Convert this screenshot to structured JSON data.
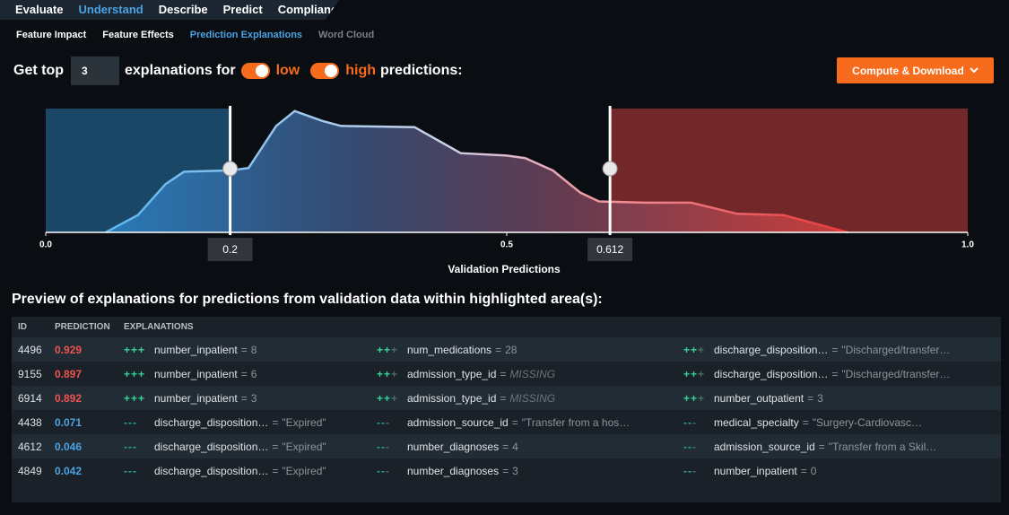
{
  "nav": {
    "tabs": [
      "Evaluate",
      "Understand",
      "Describe",
      "Predict",
      "Compliance"
    ],
    "active": 1
  },
  "subnav": {
    "tabs": [
      "Feature Impact",
      "Feature Effects",
      "Prediction Explanations",
      "Word Cloud"
    ],
    "active": 2,
    "disabled": 3
  },
  "controls": {
    "prefix": "Get top",
    "count": 3,
    "middle": "explanations for",
    "low": "low",
    "high": "high",
    "suffix": "predictions:",
    "button": "Compute & Download"
  },
  "chart_data": {
    "type": "area",
    "xlabel": "Validation Predictions",
    "xlim": [
      0,
      1
    ],
    "ylim": [
      0,
      1
    ],
    "xticks": [
      {
        "value": 0,
        "label": "0.0"
      },
      {
        "value": 0.5,
        "label": "0.5"
      },
      {
        "value": 1,
        "label": "1.0"
      }
    ],
    "x": [
      0.065,
      0.1,
      0.13,
      0.15,
      0.2,
      0.22,
      0.25,
      0.27,
      0.3,
      0.32,
      0.4,
      0.45,
      0.5,
      0.52,
      0.55,
      0.58,
      0.6,
      0.65,
      0.7,
      0.75,
      0.8,
      0.82,
      0.85,
      0.87
    ],
    "values": [
      0,
      0.14,
      0.39,
      0.49,
      0.5,
      0.52,
      0.86,
      0.98,
      0.9,
      0.86,
      0.85,
      0.64,
      0.62,
      0.6,
      0.5,
      0.32,
      0.25,
      0.24,
      0.24,
      0.15,
      0.14,
      0.1,
      0.04,
      0
    ],
    "thresholds": [
      0.2,
      0.612
    ],
    "low_color": "#2f8fcf",
    "high_color": "#c9403b"
  },
  "preview": {
    "title": "Preview of explanations for predictions from validation data within highlighted area(s):"
  },
  "table": {
    "columns": [
      "ID",
      "PREDICTION",
      "EXPLANATIONS"
    ],
    "separator": "=",
    "rows": [
      {
        "id": 4496,
        "prediction": 0.929,
        "explanations": [
          {
            "sign": "+++",
            "strength": 3,
            "feature": "number_inpatient",
            "value": 8
          },
          {
            "sign": "+++",
            "strength": 2,
            "feature": "num_medications",
            "value": 28
          },
          {
            "sign": "+++",
            "strength": 2,
            "feature": "discharge_disposition…",
            "value": "\"Discharged/transfer…"
          }
        ]
      },
      {
        "id": 9155,
        "prediction": 0.897,
        "explanations": [
          {
            "sign": "+++",
            "strength": 3,
            "feature": "number_inpatient",
            "value": 6
          },
          {
            "sign": "+++",
            "strength": 2,
            "feature": "admission_type_id",
            "value": "MISSING",
            "missing": true
          },
          {
            "sign": "+++",
            "strength": 2,
            "feature": "discharge_disposition…",
            "value": "\"Discharged/transfer…"
          }
        ]
      },
      {
        "id": 6914,
        "prediction": 0.892,
        "explanations": [
          {
            "sign": "+++",
            "strength": 3,
            "feature": "number_inpatient",
            "value": 3
          },
          {
            "sign": "+++",
            "strength": 2,
            "feature": "admission_type_id",
            "value": "MISSING",
            "missing": true
          },
          {
            "sign": "+++",
            "strength": 2,
            "feature": "number_outpatient",
            "value": 3
          }
        ]
      },
      {
        "id": 4438,
        "prediction": 0.071,
        "explanations": [
          {
            "sign": "---",
            "strength": 3,
            "feature": "discharge_disposition…",
            "value": "\"Expired\""
          },
          {
            "sign": "---",
            "strength": 2,
            "feature": "admission_source_id",
            "value": "\"Transfer from a hos…"
          },
          {
            "sign": "---",
            "strength": 2,
            "feature": "medical_specialty",
            "value": "\"Surgery-Cardiovasc…"
          }
        ]
      },
      {
        "id": 4612,
        "prediction": 0.046,
        "explanations": [
          {
            "sign": "---",
            "strength": 3,
            "feature": "discharge_disposition…",
            "value": "\"Expired\""
          },
          {
            "sign": "---",
            "strength": 2,
            "feature": "number_diagnoses",
            "value": 4
          },
          {
            "sign": "---",
            "strength": 2,
            "feature": "admission_source_id",
            "value": "\"Transfer from a Skil…"
          }
        ]
      },
      {
        "id": 4849,
        "prediction": 0.042,
        "explanations": [
          {
            "sign": "---",
            "strength": 3,
            "feature": "discharge_disposition…",
            "value": "\"Expired\""
          },
          {
            "sign": "---",
            "strength": 2,
            "feature": "number_diagnoses",
            "value": 3
          },
          {
            "sign": "---",
            "strength": 2,
            "feature": "number_inpatient",
            "value": 0
          }
        ]
      }
    ]
  }
}
